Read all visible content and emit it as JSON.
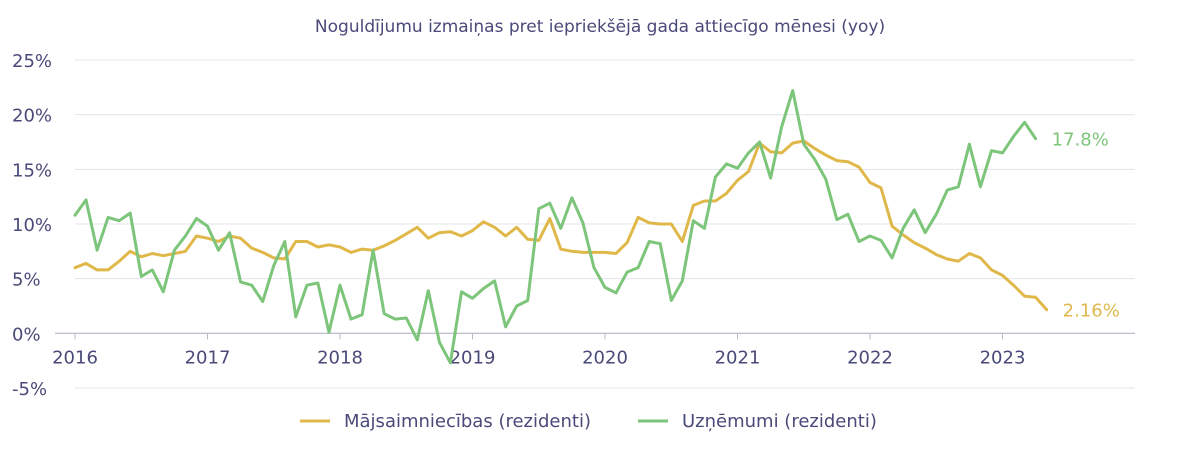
{
  "chart_data": {
    "type": "line",
    "title": "Noguldījumu izmaiņas pret iepriekšējā gada attiecīgo mēnesi (yoy)",
    "xlabel": "",
    "ylabel": "",
    "ylim": [
      -5,
      25
    ],
    "xlim": [
      2016,
      2024.0
    ],
    "x_ticks": [
      2016,
      2017,
      2018,
      2019,
      2020,
      2021,
      2022,
      2023
    ],
    "x_tick_labels": [
      "2016",
      "2017",
      "2018",
      "2019",
      "2020",
      "2021",
      "2022",
      "2023"
    ],
    "y_ticks": [
      -5,
      0,
      5,
      10,
      15,
      20,
      25
    ],
    "y_tick_labels": [
      "-5%",
      "0%",
      "5%",
      "10%",
      "15%",
      "20%",
      "25%"
    ],
    "grid": "horizontal",
    "legend_position": "bottom",
    "start": "2016-01",
    "series": [
      {
        "name": "Mājsaimniecības (rezidenti)",
        "color": "#e0b84a",
        "end_label": "2.16%",
        "values": [
          6.0,
          6.4,
          5.8,
          5.8,
          6.6,
          7.5,
          7.0,
          7.3,
          7.1,
          7.3,
          7.5,
          8.9,
          8.7,
          8.4,
          8.9,
          8.7,
          7.8,
          7.4,
          6.9,
          6.8,
          8.4,
          8.4,
          7.9,
          8.1,
          7.9,
          7.4,
          7.7,
          7.6,
          8.0,
          8.5,
          9.1,
          9.7,
          8.7,
          9.2,
          9.3,
          8.9,
          9.4,
          10.2,
          9.7,
          8.9,
          9.7,
          8.6,
          8.5,
          10.5,
          7.7,
          7.5,
          7.4,
          7.4,
          7.4,
          7.3,
          8.3,
          10.6,
          10.1,
          10.0,
          10.0,
          8.4,
          11.7,
          12.1,
          12.1,
          12.8,
          14.0,
          14.8,
          17.4,
          16.6,
          16.5,
          17.4,
          17.6,
          16.9,
          16.3,
          15.8,
          15.7,
          15.2,
          13.8,
          13.3,
          9.8,
          9.0,
          8.3,
          7.8,
          7.2,
          6.8,
          6.6,
          7.3,
          6.9,
          5.8,
          5.3,
          4.4,
          3.4,
          3.3,
          2.16
        ]
      },
      {
        "name": "Uzņēmumi (rezidenti)",
        "color": "#7dc57a",
        "end_label": "17.8%",
        "values": [
          10.8,
          12.2,
          7.6,
          10.6,
          10.3,
          11.0,
          5.2,
          5.8,
          3.8,
          7.6,
          8.9,
          10.5,
          9.8,
          7.6,
          9.2,
          4.7,
          4.4,
          2.9,
          6.2,
          8.4,
          1.5,
          4.4,
          4.6,
          0.1,
          4.4,
          1.3,
          1.7,
          7.6,
          1.8,
          1.3,
          1.4,
          -0.6,
          3.9,
          -0.8,
          -2.7,
          3.8,
          3.2,
          4.1,
          4.8,
          0.6,
          2.5,
          3.0,
          11.4,
          11.9,
          9.6,
          12.4,
          10.1,
          6.0,
          4.2,
          3.7,
          5.6,
          6.0,
          8.4,
          8.2,
          3.0,
          4.8,
          10.3,
          9.6,
          14.3,
          15.5,
          15.1,
          16.5,
          17.5,
          14.2,
          18.9,
          22.2,
          17.3,
          15.9,
          14.1,
          10.4,
          10.9,
          8.4,
          8.9,
          8.5,
          6.9,
          9.6,
          11.3,
          9.2,
          10.9,
          13.1,
          13.4,
          17.3,
          13.4,
          16.7,
          16.5,
          18.0,
          19.3,
          17.8
        ]
      }
    ]
  }
}
